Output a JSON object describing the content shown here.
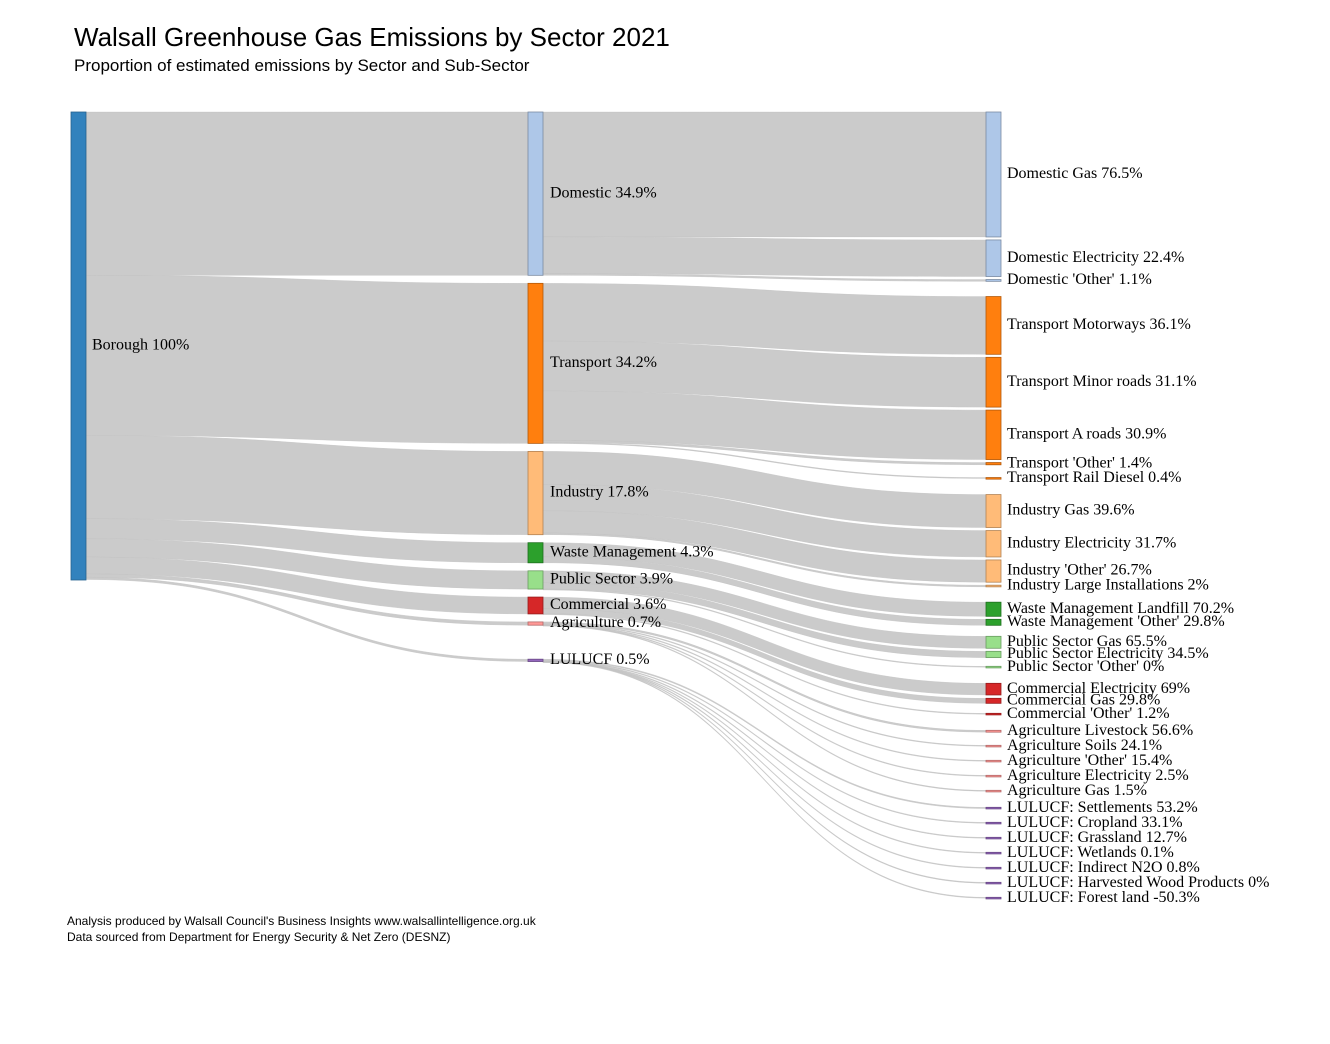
{
  "title": "Walsall Greenhouse Gas Emissions by Sector 2021",
  "subtitle": "Proportion of estimated emissions by Sector and Sub-Sector",
  "footer": {
    "line1": "Analysis produced by Walsall Council's Business Insights www.walsallintelligence.org.uk",
    "line2": "Data sourced from Department for Energy Security & Net Zero (DESNZ)"
  },
  "chart_data": {
    "type": "sankey",
    "title": "Walsall Greenhouse Gas Emissions by Sector 2021",
    "subtitle": "Proportion of estimated emissions by Sector and Sub-Sector",
    "root": {
      "label": "Borough 100%",
      "value": 100,
      "color": "#3282bd"
    },
    "sectors": [
      {
        "label": "Domestic 34.9%",
        "value": 34.9,
        "color": "#aec7e8",
        "children": [
          {
            "label": "Domestic Gas 76.5%",
            "value": 76.5
          },
          {
            "label": "Domestic Electricity 22.4%",
            "value": 22.4
          },
          {
            "label": "Domestic 'Other' 1.1%",
            "value": 1.1
          }
        ]
      },
      {
        "label": "Transport 34.2%",
        "value": 34.2,
        "color": "#ff7f0e",
        "children": [
          {
            "label": "Transport Motorways 36.1%",
            "value": 36.1
          },
          {
            "label": "Transport Minor roads 31.1%",
            "value": 31.1
          },
          {
            "label": "Transport A roads 30.9%",
            "value": 30.9
          },
          {
            "label": "Transport 'Other' 1.4%",
            "value": 1.4
          },
          {
            "label": "Transport Rail Diesel 0.4%",
            "value": 0.4
          }
        ]
      },
      {
        "label": "Industry 17.8%",
        "value": 17.8,
        "color": "#ffbb78",
        "children": [
          {
            "label": "Industry Gas 39.6%",
            "value": 39.6
          },
          {
            "label": "Industry Electricity 31.7%",
            "value": 31.7
          },
          {
            "label": "Industry 'Other' 26.7%",
            "value": 26.7
          },
          {
            "label": "Industry Large Installations 2%",
            "value": 2
          }
        ]
      },
      {
        "label": "Waste Management 4.3%",
        "value": 4.3,
        "color": "#2ca02c",
        "children": [
          {
            "label": "Waste Management Landfill 70.2%",
            "value": 70.2
          },
          {
            "label": "Waste Management 'Other' 29.8%",
            "value": 29.8
          }
        ]
      },
      {
        "label": "Public Sector 3.9%",
        "value": 3.9,
        "color": "#98df8a",
        "children": [
          {
            "label": "Public Sector Gas 65.5%",
            "value": 65.5
          },
          {
            "label": "Public Sector Electricity 34.5%",
            "value": 34.5
          },
          {
            "label": "Public Sector 'Other' 0%",
            "value": 0
          }
        ]
      },
      {
        "label": "Commercial 3.6%",
        "value": 3.6,
        "color": "#d62728",
        "children": [
          {
            "label": "Commercial Electricity 69%",
            "value": 69
          },
          {
            "label": "Commercial Gas 29.8%",
            "value": 29.8
          },
          {
            "label": "Commercial 'Other' 1.2%",
            "value": 1.2
          }
        ]
      },
      {
        "label": "Agriculture 0.7%",
        "value": 0.7,
        "color": "#ff9896",
        "children": [
          {
            "label": "Agriculture Livestock 56.6%",
            "value": 56.6
          },
          {
            "label": "Agriculture Soils 24.1%",
            "value": 24.1
          },
          {
            "label": "Agriculture 'Other' 15.4%",
            "value": 15.4
          },
          {
            "label": "Agriculture Electricity 2.5%",
            "value": 2.5
          },
          {
            "label": "Agriculture Gas 1.5%",
            "value": 1.5
          }
        ]
      },
      {
        "label": "LULUCF 0.5%",
        "value": 0.5,
        "color": "#9467bd",
        "children": [
          {
            "label": "LULUCF: Settlements 53.2%",
            "value": 53.2
          },
          {
            "label": "LULUCF: Cropland 33.1%",
            "value": 33.1
          },
          {
            "label": "LULUCF: Grassland 12.7%",
            "value": 12.7
          },
          {
            "label": "LULUCF: Wetlands 0.1%",
            "value": 0.1
          },
          {
            "label": "LULUCF: Indirect N2O 0.8%",
            "value": 0.8
          },
          {
            "label": "LULUCF: Harvested Wood Products 0%",
            "value": 0
          },
          {
            "label": "LULUCF: Forest land -50.3%",
            "value": -50.3
          }
        ]
      }
    ]
  }
}
